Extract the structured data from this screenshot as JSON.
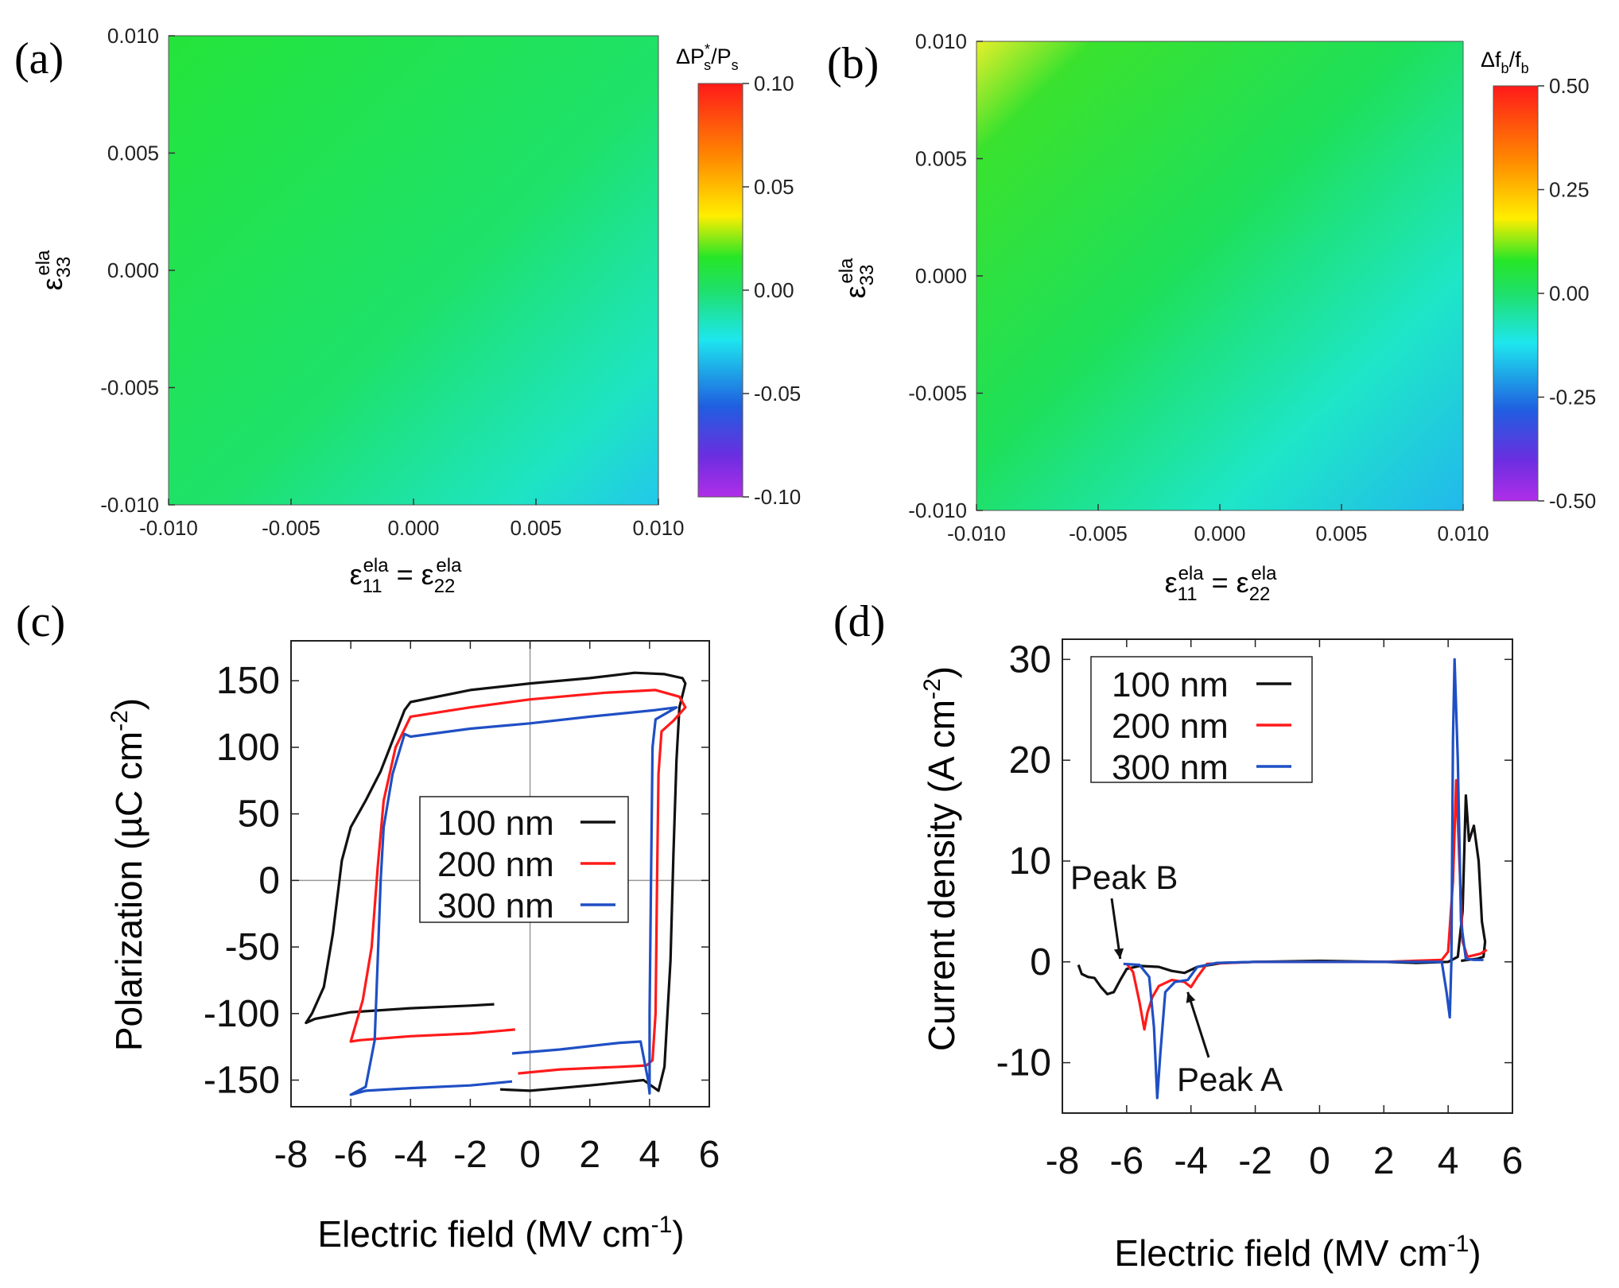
{
  "panels": {
    "a": {
      "label": "(a)"
    },
    "b": {
      "label": "(b)"
    },
    "c": {
      "label": "(c)"
    },
    "d": {
      "label": "(d)"
    }
  },
  "colors": {
    "black": "#111111",
    "red": "#ff1a1a",
    "blue": "#1f4fc4",
    "green": "#1ee03a",
    "cyan": "#1ee6ee"
  },
  "chart_data": [
    {
      "id": "a",
      "type": "heatmap",
      "title": "",
      "xlabel": "ε11ela = ε22ela",
      "xlabel_parts": {
        "sym": "ε",
        "sub1": "11",
        "sup1": "ela",
        "eq": " = ",
        "sub2": "22",
        "sup2": "ela"
      },
      "ylabel_parts": {
        "sym": "ε",
        "sub": "33",
        "sup": "ela"
      },
      "xlim": [
        -0.01,
        0.01
      ],
      "ylim": [
        -0.01,
        0.01
      ],
      "x_ticks": [
        "-0.010",
        "-0.005",
        "0.000",
        "0.005",
        "0.010"
      ],
      "y_ticks": [
        "-0.010",
        "-0.005",
        "0.000",
        "0.005",
        "0.010"
      ],
      "colorbar": {
        "label_parts": {
          "pre": "ΔP",
          "sup": "*",
          "sub": "s",
          "mid": "/P",
          "sub2": "s"
        },
        "range": [
          -0.1,
          0.1
        ],
        "ticks": [
          "0.10",
          "0.05",
          "0.00",
          "-0.05",
          "-0.10"
        ]
      },
      "corner_values": {
        "top_left": 0.004,
        "top_right": 0.0,
        "bottom_left": 0.0,
        "bottom_right": -0.03
      }
    },
    {
      "id": "b",
      "type": "heatmap",
      "title": "",
      "xlabel": "ε11ela = ε22ela",
      "xlabel_parts": {
        "sym": "ε",
        "sub1": "11",
        "sup1": "ela",
        "eq": " = ",
        "sub2": "22",
        "sup2": "ela"
      },
      "ylabel_parts": {
        "sym": "ε",
        "sub": "33",
        "sup": "ela"
      },
      "xlim": [
        -0.01,
        0.01
      ],
      "ylim": [
        -0.01,
        0.01
      ],
      "x_ticks": [
        "-0.010",
        "-0.005",
        "0.000",
        "0.005",
        "0.010"
      ],
      "y_ticks": [
        "-0.010",
        "-0.005",
        "0.000",
        "0.005",
        "0.010"
      ],
      "colorbar": {
        "label_parts": {
          "pre": "Δf",
          "sub": "b",
          "mid": "/f",
          "sub2": "b"
        },
        "range": [
          -0.5,
          0.5
        ],
        "ticks": [
          "0.50",
          "0.25",
          "0.00",
          "-0.25",
          "-0.50"
        ]
      },
      "corner_values": {
        "top_left": 0.2,
        "top_right": 0.0,
        "bottom_left": 0.02,
        "bottom_right": -0.15
      }
    },
    {
      "id": "c",
      "type": "line",
      "xlabel": "Electric field (MV cm⁻¹)",
      "xlabel_parts": {
        "pre": "Electric field (MV cm",
        "sup": "-1",
        "post": ")"
      },
      "ylabel": "Polarization (µC cm⁻²)",
      "ylabel_parts": {
        "pre": "Polarization (µC cm",
        "sup": "-2",
        "post": ")"
      },
      "xlim": [
        -8,
        6
      ],
      "ylim": [
        -170,
        180
      ],
      "x_ticks": [
        "-8",
        "-6",
        "-4",
        "-2",
        "0",
        "2",
        "4",
        "6"
      ],
      "y_ticks": [
        "150",
        "100",
        "50",
        "0",
        "-50",
        "-100",
        "-150"
      ],
      "grid": "zero lines",
      "legend": {
        "position": "center-right",
        "entries": [
          "100 nm",
          "200 nm",
          "300 nm"
        ]
      },
      "series": [
        {
          "name": "100 nm",
          "points": [
            [
              -1,
              -157
            ],
            [
              0,
              -158
            ],
            [
              2,
              -154
            ],
            [
              3.8,
              -150
            ],
            [
              4.3,
              -158
            ],
            [
              4.5,
              -140
            ],
            [
              4.7,
              -60
            ],
            [
              4.8,
              20
            ],
            [
              4.9,
              90
            ],
            [
              5.0,
              130
            ],
            [
              5.2,
              148
            ],
            [
              5.1,
              152
            ],
            [
              4.5,
              155
            ],
            [
              3.5,
              156
            ],
            [
              2,
              152
            ],
            [
              0,
              148
            ],
            [
              -2,
              143
            ],
            [
              -4,
              134
            ],
            [
              -4.2,
              128
            ],
            [
              -4.6,
              105
            ],
            [
              -5.0,
              82
            ],
            [
              -5.5,
              60
            ],
            [
              -6.0,
              40
            ],
            [
              -6.3,
              15
            ],
            [
              -6.6,
              -40
            ],
            [
              -6.9,
              -80
            ],
            [
              -7.3,
              -100
            ],
            [
              -7.5,
              -107
            ],
            [
              -7.2,
              -104
            ],
            [
              -6,
              -99
            ],
            [
              -4,
              -96
            ],
            [
              -2,
              -94
            ],
            [
              -1.2,
              -93
            ]
          ]
        },
        {
          "name": "200 nm",
          "points": [
            [
              -0.4,
              -145
            ],
            [
              1,
              -142
            ],
            [
              3,
              -140
            ],
            [
              3.9,
              -139
            ],
            [
              4.1,
              -135
            ],
            [
              4.2,
              -100
            ],
            [
              4.25,
              0
            ],
            [
              4.3,
              80
            ],
            [
              4.4,
              112
            ],
            [
              4.8,
              120
            ],
            [
              5.2,
              130
            ],
            [
              5.0,
              138
            ],
            [
              4.2,
              143
            ],
            [
              2.5,
              141
            ],
            [
              0,
              136
            ],
            [
              -2,
              130
            ],
            [
              -4,
              123
            ],
            [
              -4.5,
              100
            ],
            [
              -4.9,
              60
            ],
            [
              -5.1,
              10
            ],
            [
              -5.3,
              -50
            ],
            [
              -5.6,
              -90
            ],
            [
              -6.0,
              -121
            ],
            [
              -5.7,
              -120
            ],
            [
              -4,
              -117
            ],
            [
              -2,
              -115
            ],
            [
              -0.5,
              -112
            ]
          ]
        },
        {
          "name": "300 nm",
          "points": [
            [
              -0.6,
              -130
            ],
            [
              1,
              -127
            ],
            [
              3,
              -122
            ],
            [
              3.7,
              -121
            ],
            [
              3.95,
              -150
            ],
            [
              4.0,
              -160
            ],
            [
              4.0,
              -100
            ],
            [
              4.05,
              0
            ],
            [
              4.1,
              100
            ],
            [
              4.2,
              121
            ],
            [
              4.9,
              130
            ],
            [
              4.2,
              128
            ],
            [
              2,
              123
            ],
            [
              0,
              118
            ],
            [
              -2,
              114
            ],
            [
              -4,
              108
            ],
            [
              -4.2,
              110
            ],
            [
              -4.6,
              80
            ],
            [
              -4.9,
              40
            ],
            [
              -5.0,
              0
            ],
            [
              -5.1,
              -60
            ],
            [
              -5.2,
              -120
            ],
            [
              -5.5,
              -155
            ],
            [
              -6.0,
              -161
            ],
            [
              -5.5,
              -158
            ],
            [
              -4,
              -156
            ],
            [
              -2,
              -154
            ],
            [
              -0.6,
              -151
            ]
          ]
        }
      ]
    },
    {
      "id": "d",
      "type": "line",
      "xlabel": "Electric field (MV cm⁻¹)",
      "xlabel_parts": {
        "pre": "Electric field (MV cm",
        "sup": "-1",
        "post": ")"
      },
      "ylabel": "Current density (A cm⁻²)",
      "ylabel_parts": {
        "pre": "Current density (A cm",
        "sup": "-2",
        "post": ")"
      },
      "xlim": [
        -8,
        6
      ],
      "ylim": [
        -15,
        32
      ],
      "x_ticks": [
        "-8",
        "-6",
        "-4",
        "-2",
        "0",
        "2",
        "4",
        "6"
      ],
      "y_ticks": [
        "30",
        "20",
        "10",
        "0",
        "-10"
      ],
      "grid": "none",
      "legend": {
        "position": "top-left",
        "entries": [
          "100 nm",
          "200 nm",
          "300 nm"
        ]
      },
      "annotations": [
        {
          "text": "Peak B",
          "arrow_to": [
            -6.2,
            0.3
          ]
        },
        {
          "text": "Peak A",
          "arrow_to": [
            -4.1,
            -3.0
          ]
        }
      ],
      "series": [
        {
          "name": "100 nm",
          "points": [
            [
              -7.5,
              -0.3
            ],
            [
              -7.4,
              -1.2
            ],
            [
              -7.2,
              -1.5
            ],
            [
              -7.0,
              -1.6
            ],
            [
              -6.8,
              -2.5
            ],
            [
              -6.6,
              -3.2
            ],
            [
              -6.4,
              -3.0
            ],
            [
              -6.2,
              -1.8
            ],
            [
              -6.0,
              -0.7
            ],
            [
              -5.6,
              -0.4
            ],
            [
              -5.0,
              -0.5
            ],
            [
              -4.6,
              -0.9
            ],
            [
              -4.2,
              -1.1
            ],
            [
              -3.8,
              -0.5
            ],
            [
              -3.0,
              -0.1
            ],
            [
              -2,
              0.0
            ],
            [
              0,
              0.1
            ],
            [
              2,
              0.0
            ],
            [
              3,
              -0.1
            ],
            [
              4.0,
              0.0
            ],
            [
              4.3,
              0.5
            ],
            [
              4.45,
              5
            ],
            [
              4.55,
              16.5
            ],
            [
              4.65,
              12
            ],
            [
              4.8,
              13.5
            ],
            [
              4.95,
              10
            ],
            [
              5.05,
              4
            ],
            [
              5.15,
              2
            ],
            [
              5.1,
              0.5
            ],
            [
              4.9,
              0.3
            ],
            [
              4.6,
              0.2
            ],
            [
              4.4,
              0.1
            ]
          ]
        },
        {
          "name": "200 nm",
          "points": [
            [
              -6.0,
              -0.2
            ],
            [
              -5.8,
              -1.0
            ],
            [
              -5.6,
              -4.0
            ],
            [
              -5.45,
              -6.7
            ],
            [
              -5.35,
              -5.0
            ],
            [
              -5.2,
              -3.5
            ],
            [
              -5.0,
              -2.4
            ],
            [
              -4.6,
              -1.8
            ],
            [
              -4.2,
              -2.0
            ],
            [
              -4.0,
              -2.5
            ],
            [
              -3.8,
              -1.5
            ],
            [
              -3.5,
              -0.2
            ],
            [
              -2,
              0.0
            ],
            [
              0,
              0.0
            ],
            [
              2,
              0.0
            ],
            [
              3.8,
              0.2
            ],
            [
              4.0,
              1.0
            ],
            [
              4.15,
              8
            ],
            [
              4.25,
              18
            ],
            [
              4.35,
              10
            ],
            [
              4.45,
              2
            ],
            [
              4.6,
              0.5
            ],
            [
              5.0,
              0.8
            ],
            [
              5.2,
              1.2
            ]
          ]
        },
        {
          "name": "300 nm",
          "points": [
            [
              -6.1,
              -0.2
            ],
            [
              -5.6,
              -0.3
            ],
            [
              -5.3,
              -1.5
            ],
            [
              -5.15,
              -6.5
            ],
            [
              -5.05,
              -13.5
            ],
            [
              -4.95,
              -9
            ],
            [
              -4.8,
              -3.0
            ],
            [
              -4.5,
              -2.0
            ],
            [
              -4.1,
              -1.8
            ],
            [
              -3.8,
              -0.5
            ],
            [
              -3.2,
              -0.1
            ],
            [
              -2,
              0.0
            ],
            [
              0,
              0.0
            ],
            [
              2,
              0.0
            ],
            [
              3.8,
              0.0
            ],
            [
              3.95,
              -3.0
            ],
            [
              4.05,
              -5.5
            ],
            [
              4.1,
              0
            ],
            [
              4.15,
              22
            ],
            [
              4.2,
              30
            ],
            [
              4.3,
              20
            ],
            [
              4.4,
              4
            ],
            [
              4.55,
              0.3
            ],
            [
              4.8,
              0.2
            ],
            [
              5.1,
              0.2
            ]
          ]
        }
      ]
    }
  ]
}
